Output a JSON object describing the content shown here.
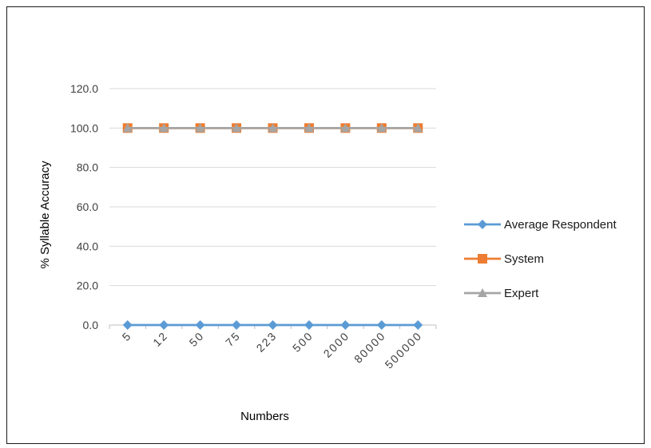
{
  "chart_data": {
    "type": "line",
    "title": "",
    "xlabel": "Numbers",
    "ylabel": "% Syllable Accuracy",
    "categories": [
      "5",
      "12",
      "50",
      "75",
      "223",
      "500",
      "2000",
      "80000",
      "500000"
    ],
    "y_ticks": [
      "0.0",
      "20.0",
      "40.0",
      "60.0",
      "80.0",
      "100.0",
      "120.0"
    ],
    "ylim": [
      0,
      120
    ],
    "grid": "horizontal",
    "legend_position": "right",
    "series": [
      {
        "name": "Average Respondent",
        "marker": "diamond",
        "color": "#5B9BD5",
        "values": [
          0,
          0,
          0,
          0,
          0,
          0,
          0,
          0,
          0
        ]
      },
      {
        "name": "System",
        "marker": "square",
        "color": "#ED7D31",
        "values": [
          100,
          100,
          100,
          100,
          100,
          100,
          100,
          100,
          100
        ]
      },
      {
        "name": "Expert",
        "marker": "triangle",
        "color": "#A5A5A5",
        "values": [
          100,
          100,
          100,
          100,
          100,
          100,
          100,
          100,
          100
        ]
      }
    ]
  }
}
